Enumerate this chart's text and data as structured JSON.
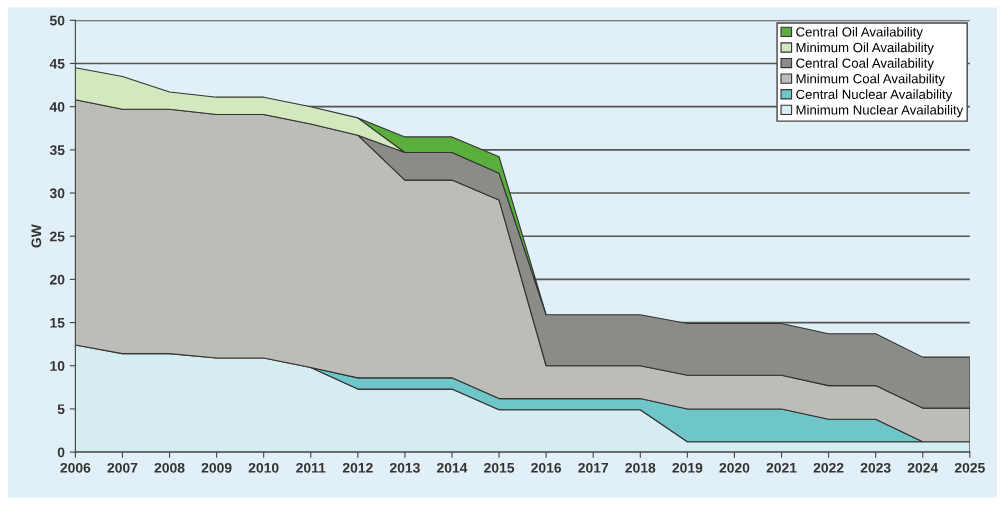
{
  "chart_data": {
    "type": "area",
    "stacked": true,
    "ylabel": "GW",
    "x": [
      2006,
      2007,
      2008,
      2009,
      2010,
      2011,
      2012,
      2013,
      2014,
      2015,
      2016,
      2017,
      2018,
      2019,
      2020,
      2021,
      2022,
      2023,
      2024,
      2025
    ],
    "xlim": [
      2006,
      2025
    ],
    "xticks": [
      2006,
      2007,
      2008,
      2009,
      2010,
      2011,
      2012,
      2013,
      2014,
      2015,
      2016,
      2017,
      2018,
      2019,
      2020,
      2021,
      2022,
      2023,
      2024,
      2025
    ],
    "ylim": [
      0,
      50
    ],
    "yticks": [
      0,
      5,
      10,
      15,
      20,
      25,
      30,
      35,
      40,
      45,
      50
    ],
    "grid": "y",
    "legend": "top right",
    "series": [
      {
        "name": "Minimum Nuclear Availability",
        "color": "#d5ecf0",
        "values": [
          12.4,
          11.4,
          11.4,
          10.9,
          10.9,
          9.8,
          7.3,
          7.3,
          7.3,
          4.9,
          4.9,
          4.9,
          4.9,
          1.2,
          1.2,
          1.2,
          1.2,
          1.2,
          1.2,
          1.2
        ]
      },
      {
        "name": "Central Nuclear Availability",
        "color": "#6fc6c9",
        "values": [
          null,
          null,
          null,
          null,
          null,
          0,
          1.3,
          1.3,
          1.3,
          1.3,
          1.3,
          1.3,
          1.3,
          3.8,
          3.8,
          3.8,
          2.6,
          2.6,
          0,
          null
        ]
      },
      {
        "name": "Minimum Coal Availability",
        "color": "#bcbdb7",
        "values": [
          28.4,
          28.3,
          28.3,
          28.2,
          28.2,
          28.2,
          28.1,
          22.9,
          22.9,
          23.0,
          3.8,
          3.8,
          3.8,
          3.9,
          3.9,
          3.9,
          3.9,
          3.9,
          3.9,
          3.9
        ]
      },
      {
        "name": "Central Coal Availability",
        "color": "#8b8c88",
        "values": [
          null,
          null,
          null,
          null,
          null,
          null,
          0,
          3.2,
          3.2,
          3.1,
          5.9,
          5.9,
          5.9,
          6.0,
          6.0,
          6.0,
          6.0,
          6.0,
          5.9,
          5.9
        ]
      },
      {
        "name": "Minimum Oil Availability",
        "color": "#d4e8bf",
        "values": [
          3.7,
          3.8,
          2.0,
          2.0,
          2.0,
          2.0,
          2.0,
          0,
          null,
          null,
          null,
          null,
          null,
          null,
          null,
          null,
          null,
          null,
          null,
          null
        ]
      },
      {
        "name": "Central Oil Availability",
        "color": "#5aaf3c",
        "values": [
          null,
          null,
          null,
          null,
          null,
          null,
          0,
          1.8,
          1.8,
          1.9,
          0,
          null,
          null,
          null,
          null,
          null,
          null,
          null,
          null,
          null
        ]
      }
    ]
  }
}
